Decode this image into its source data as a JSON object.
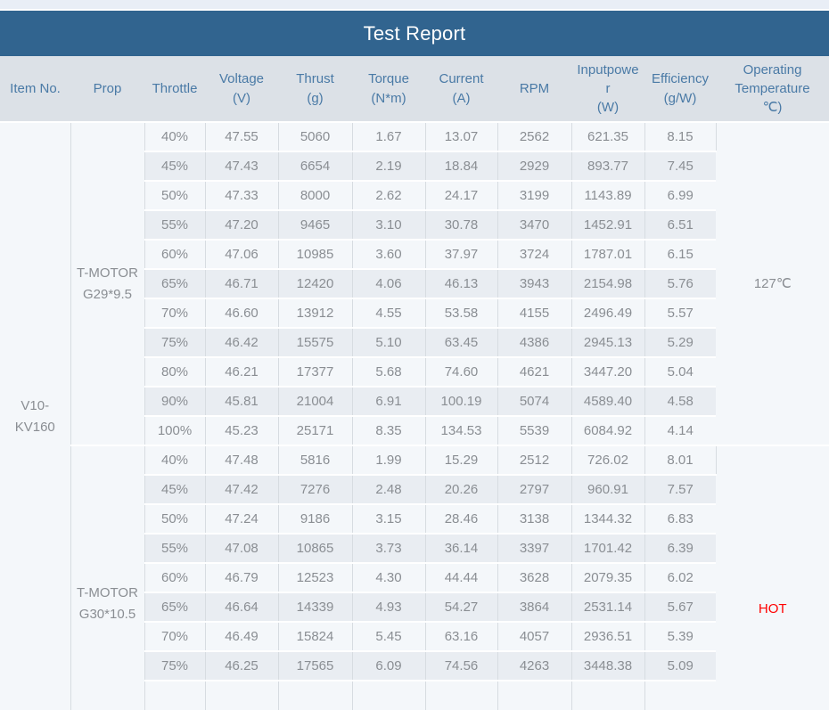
{
  "title": "Test Report",
  "colors": {
    "strip-bg": "#e9eef6",
    "title-bg": "#31648f",
    "title-fg": "#ffffff",
    "header-bg": "#dce1e7",
    "header-fg": "#4a7aa6",
    "row-light": "#f4f7fa",
    "row-dark": "#e9edf2",
    "grid-line": "#d7dce1",
    "text-muted": "#8a8e93",
    "item-blue": "#41719e",
    "accent-red": "#ff0000",
    "temp-dark": "#3d4147"
  },
  "table": {
    "columns": [
      "Item No.",
      "Prop",
      "Throttle",
      "Voltage\n(V)",
      "Thrust\n(g)",
      "Torque\n(N*m)",
      "Current\n(A)",
      "RPM",
      "Inputpowe\nr\n(W)",
      "Efficiency\n(g/W)",
      "Operating\nTemperature\n℃)"
    ],
    "item_no": "V10-\nKV160",
    "groups": [
      {
        "prop": "T-MOTOR\nG29*9.5",
        "temperature": "127℃",
        "rows": [
          [
            "40%",
            "47.55",
            "5060",
            "1.67",
            "13.07",
            "2562",
            "621.35",
            "8.15"
          ],
          [
            "45%",
            "47.43",
            "6654",
            "2.19",
            "18.84",
            "2929",
            "893.77",
            "7.45"
          ],
          [
            "50%",
            "47.33",
            "8000",
            "2.62",
            "24.17",
            "3199",
            "1143.89",
            "6.99"
          ],
          [
            "55%",
            "47.20",
            "9465",
            "3.10",
            "30.78",
            "3470",
            "1452.91",
            "6.51"
          ],
          [
            "60%",
            "47.06",
            "10985",
            "3.60",
            "37.97",
            "3724",
            "1787.01",
            "6.15"
          ],
          [
            "65%",
            "46.71",
            "12420",
            "4.06",
            "46.13",
            "3943",
            "2154.98",
            "5.76"
          ],
          [
            "70%",
            "46.60",
            "13912",
            "4.55",
            "53.58",
            "4155",
            "2496.49",
            "5.57"
          ],
          [
            "75%",
            "46.42",
            "15575",
            "5.10",
            "63.45",
            "4386",
            "2945.13",
            "5.29"
          ],
          [
            "80%",
            "46.21",
            "17377",
            "5.68",
            "74.60",
            "4621",
            "3447.20",
            "5.04"
          ],
          [
            "90%",
            "45.81",
            "21004",
            "6.91",
            "100.19",
            "5074",
            "4589.40",
            "4.58"
          ],
          [
            "100%",
            "45.23",
            "25171",
            "8.35",
            "134.53",
            "5539",
            "6084.92",
            "4.14"
          ]
        ]
      },
      {
        "prop": "T-MOTOR\nG30*10.5",
        "temperature": "HOT",
        "rows": [
          [
            "40%",
            "47.48",
            "5816",
            "1.99",
            "15.29",
            "2512",
            "726.02",
            "8.01"
          ],
          [
            "45%",
            "47.42",
            "7276",
            "2.48",
            "20.26",
            "2797",
            "960.91",
            "7.57"
          ],
          [
            "50%",
            "47.24",
            "9186",
            "3.15",
            "28.46",
            "3138",
            "1344.32",
            "6.83"
          ],
          [
            "55%",
            "47.08",
            "10865",
            "3.73",
            "36.14",
            "3397",
            "1701.42",
            "6.39"
          ],
          [
            "60%",
            "46.79",
            "12523",
            "4.30",
            "44.44",
            "3628",
            "2079.35",
            "6.02"
          ],
          [
            "65%",
            "46.64",
            "14339",
            "4.93",
            "54.27",
            "3864",
            "2531.14",
            "5.67"
          ],
          [
            "70%",
            "46.49",
            "15824",
            "5.45",
            "63.16",
            "4057",
            "2936.51",
            "5.39"
          ],
          [
            "75%",
            "46.25",
            "17565",
            "6.09",
            "74.56",
            "4263",
            "3448.38",
            "5.09"
          ]
        ],
        "partial_row_visible": true
      }
    ]
  }
}
